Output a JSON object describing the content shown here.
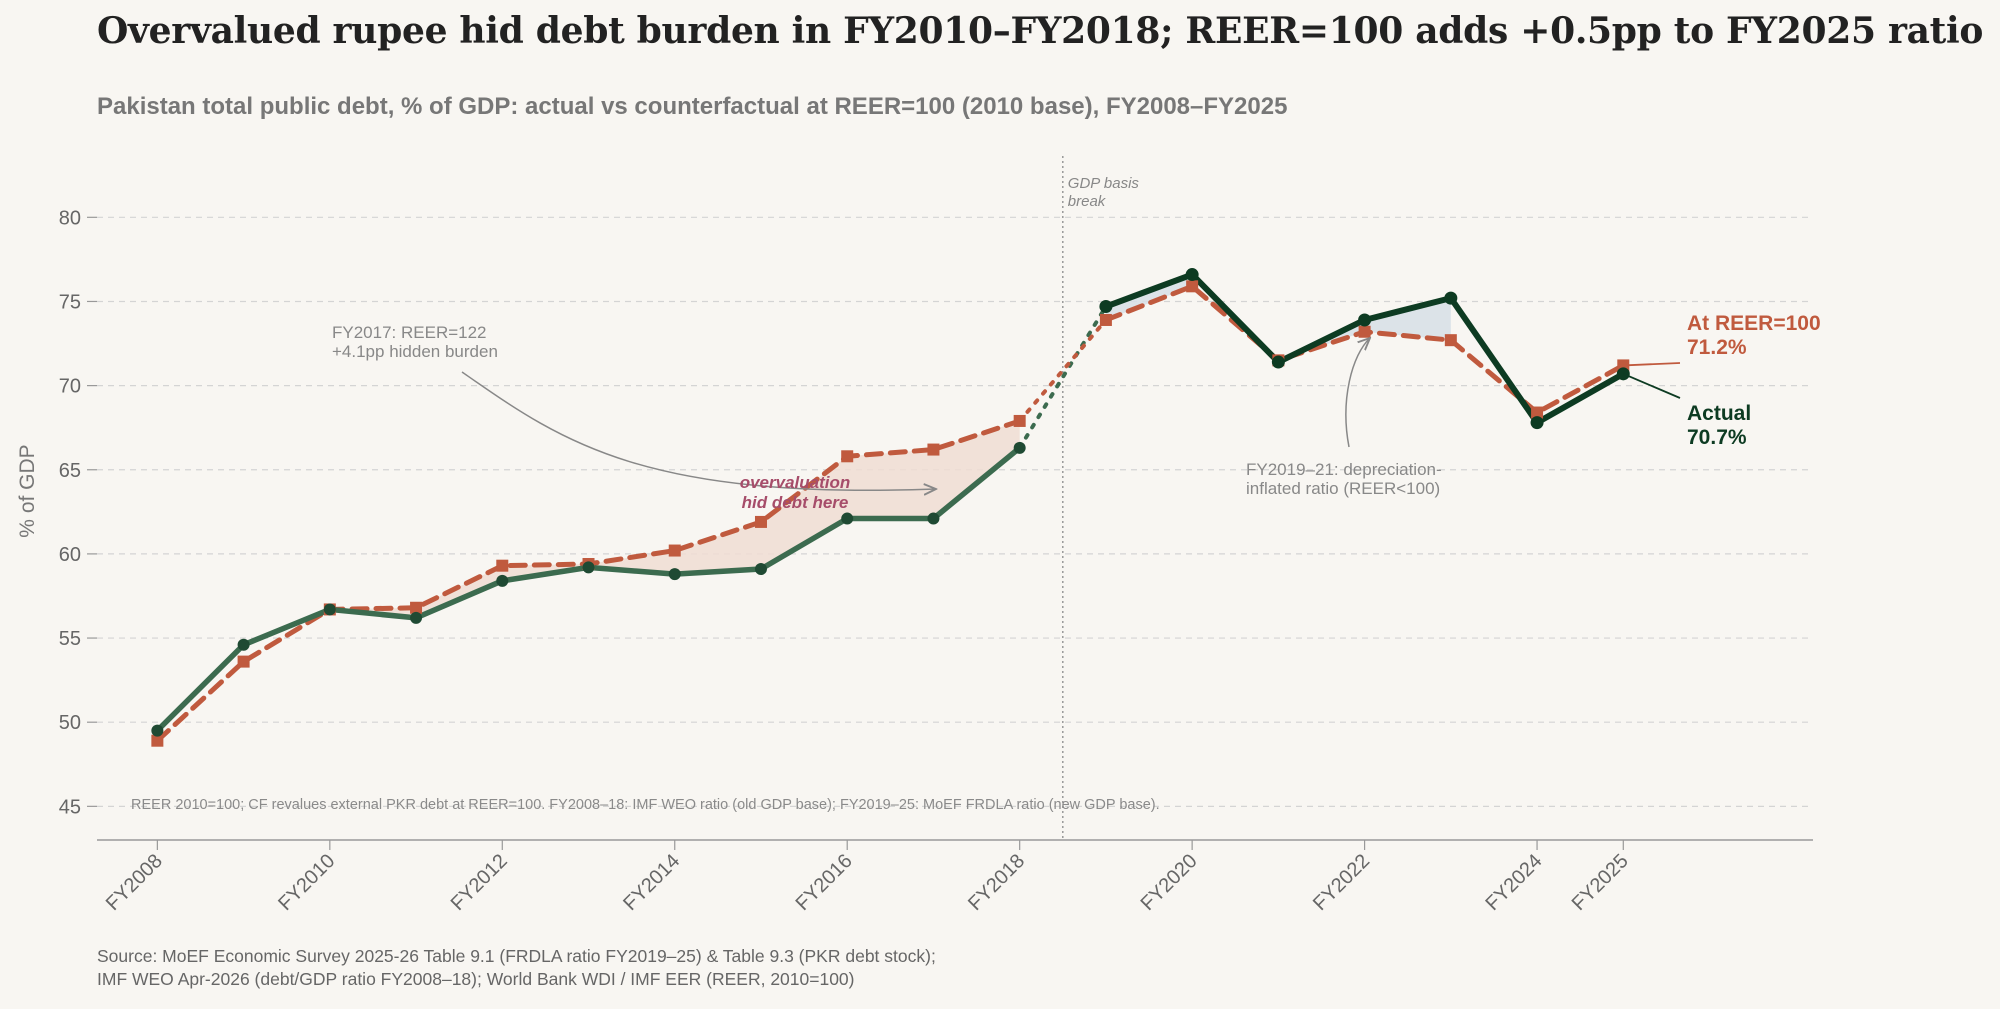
{
  "title": "Overvalued rupee hid debt burden in FY2010–FY2018; REER=100 adds +0.5pp to FY2025 ratio",
  "subtitle": "Pakistan total public debt, % of GDP: actual vs counterfactual at REER=100 (2010 base), FY2008–FY2025",
  "source_lines": [
    "Source: MoEF Economic Survey 2025-26 Table 9.1 (FRDLA ratio FY2019–25) & Table 9.3 (PKR debt stock);",
    "IMF WEO Apr-2026 (debt/GDP ratio FY2008–18); World Bank WDI / IMF EER (REER, 2010=100)"
  ],
  "colors": {
    "actual_old": "#3c6b4f",
    "actual_new": "#0d3b22",
    "counterfactual": "#c05a3e",
    "overvaluation_fill": "#f0ddd3",
    "depreciation_fill": "#d7dfe6",
    "overvaluation_text": "#a64d6a",
    "grid": "#d4d4d4",
    "muted_text": "#888888"
  },
  "chart_data": {
    "type": "line",
    "ylabel": "% of GDP",
    "xlabel": "",
    "ylim": [
      43,
      84
    ],
    "yticks": [
      45,
      50,
      55,
      60,
      65,
      70,
      75,
      80
    ],
    "xlim": [
      2007.3,
      2027.2
    ],
    "xticks": [
      {
        "value": 2008,
        "label": "FY2008"
      },
      {
        "value": 2010,
        "label": "FY2010"
      },
      {
        "value": 2012,
        "label": "FY2012"
      },
      {
        "value": 2014,
        "label": "FY2014"
      },
      {
        "value": 2016,
        "label": "FY2016"
      },
      {
        "value": 2018,
        "label": "FY2018"
      },
      {
        "value": 2020,
        "label": "FY2020"
      },
      {
        "value": 2022,
        "label": "FY2022"
      },
      {
        "value": 2024,
        "label": "FY2024"
      },
      {
        "value": 2025,
        "label": "FY2025"
      }
    ],
    "grid": true,
    "basis_break": {
      "x": 2018.5,
      "label_lines": [
        "GDP basis",
        "break"
      ]
    },
    "x": [
      2008,
      2009,
      2010,
      2011,
      2012,
      2013,
      2014,
      2015,
      2016,
      2017,
      2018,
      2019,
      2020,
      2021,
      2022,
      2023,
      2024,
      2025
    ],
    "series": [
      {
        "name": "Actual",
        "values": [
          49.5,
          54.6,
          56.7,
          56.2,
          58.4,
          59.2,
          58.8,
          59.1,
          62.1,
          62.1,
          66.3,
          74.7,
          76.6,
          71.4,
          73.9,
          75.2,
          67.8,
          70.7
        ]
      },
      {
        "name": "At REER=100",
        "values": [
          48.9,
          53.6,
          56.7,
          56.8,
          59.3,
          59.4,
          60.2,
          61.9,
          65.8,
          66.2,
          67.9,
          73.9,
          75.9,
          71.5,
          73.2,
          72.7,
          68.4,
          71.2
        ]
      }
    ],
    "end_labels": {
      "counterfactual": {
        "name": "At REER=100",
        "value": "71.2%"
      },
      "actual": {
        "name": "Actual",
        "value": "70.7%"
      }
    },
    "annotations": {
      "fy2017": [
        "FY2017: REER=122",
        "+4.1pp hidden burden"
      ],
      "overvaluation": [
        "overvaluation",
        "hid debt here"
      ],
      "depreciation": [
        "FY2019–21: depreciation-",
        "inflated ratio (REER<100)"
      ],
      "footnote": "REER 2010=100; CF revalues external PKR debt at REER=100. FY2008–18: IMF WEO ratio (old GDP base); FY2019–25: MoEF FRDLA ratio (new GDP base)."
    }
  }
}
